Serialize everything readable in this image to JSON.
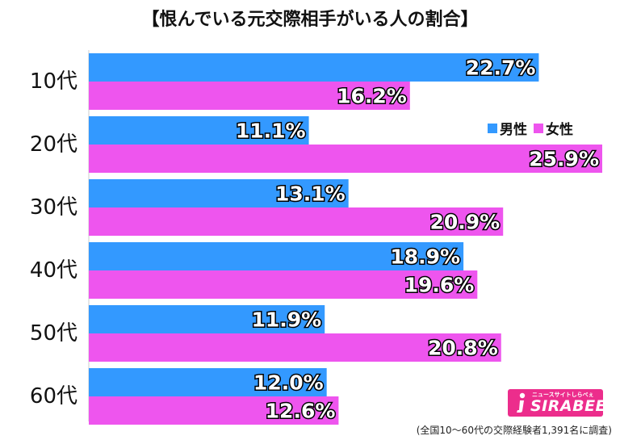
{
  "page": {
    "title": "【恨んでいる元交際相手がいる人の割合】",
    "legend": {
      "male_label": "男性",
      "female_label": "女性"
    },
    "note": "(全国10〜60代の交際経験者1,391名に調査)",
    "logo": {
      "tagline": "ニュースサイトしらべぇ",
      "wordmark": "SIRABEE"
    }
  },
  "colors": {
    "male": "#3399ff",
    "female": "#ee55ee",
    "label_outline": "#000000",
    "value_text": "#ffffff"
  },
  "chart_data": {
    "type": "bar",
    "orientation": "horizontal",
    "title": "【恨んでいる元交際相手がいる人の割合】",
    "categories": [
      "10代",
      "20代",
      "30代",
      "40代",
      "50代",
      "60代"
    ],
    "series": [
      {
        "name": "男性",
        "values": [
          22.7,
          11.1,
          13.1,
          18.9,
          11.9,
          12.0
        ],
        "labels": [
          "22.7%",
          "11.1%",
          "13.1%",
          "18.9%",
          "11.9%",
          "12.0%"
        ]
      },
      {
        "name": "女性",
        "values": [
          16.2,
          25.9,
          20.9,
          19.6,
          20.8,
          12.6
        ],
        "labels": [
          "16.2%",
          "25.9%",
          "20.9%",
          "19.6%",
          "20.8%",
          "12.6%"
        ]
      }
    ],
    "xlim": [
      0,
      25.9
    ],
    "unit": "%",
    "legend_position": "right",
    "grid": false
  }
}
